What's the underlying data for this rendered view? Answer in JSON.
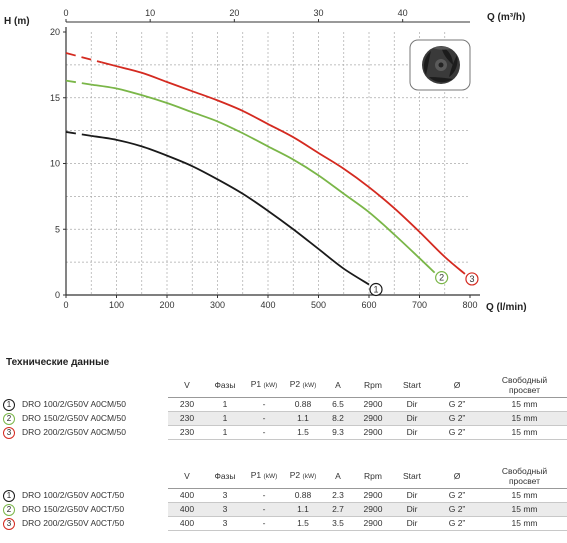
{
  "chart_data": {
    "type": "line",
    "ylabel": "H (m)",
    "xlabel_bottom": "Q (l/min)",
    "xlabel_top": "Q (m³/h)",
    "xlim": [
      0,
      800
    ],
    "ylim": [
      0,
      20
    ],
    "x_ticks": [
      0,
      100,
      200,
      300,
      400,
      500,
      600,
      700,
      800
    ],
    "y_ticks": [
      0,
      5,
      10,
      15,
      20
    ],
    "top_ticks": [
      0,
      10,
      20,
      30,
      40
    ],
    "grid": true,
    "series": [
      {
        "name": "1",
        "color": "#1a1a1a",
        "dashed_x": [
          0,
          50
        ],
        "x": [
          50,
          100,
          150,
          200,
          250,
          300,
          350,
          400,
          450,
          500,
          550,
          600
        ],
        "y": [
          12.1,
          11.8,
          11.3,
          10.6,
          9.8,
          8.8,
          7.7,
          6.4,
          5.0,
          3.5,
          2.0,
          0.8
        ]
      },
      {
        "name": "2",
        "color": "#7ab648",
        "dashed_x": [
          0,
          50
        ],
        "x": [
          50,
          100,
          150,
          200,
          250,
          300,
          350,
          400,
          450,
          500,
          550,
          600,
          650,
          700,
          730
        ],
        "y": [
          16.0,
          15.7,
          15.2,
          14.6,
          13.9,
          13.2,
          12.3,
          11.3,
          10.3,
          9.1,
          7.7,
          6.3,
          4.6,
          2.8,
          1.7
        ]
      },
      {
        "name": "3",
        "color": "#d42a20",
        "dashed_x": [
          0,
          70
        ],
        "x": [
          70,
          100,
          150,
          200,
          250,
          300,
          350,
          400,
          450,
          500,
          550,
          600,
          650,
          700,
          750,
          790
        ],
        "y": [
          17.7,
          17.4,
          16.9,
          16.2,
          15.5,
          14.8,
          14.0,
          13.0,
          12.0,
          10.8,
          9.6,
          8.2,
          6.6,
          4.8,
          2.9,
          1.6
        ]
      }
    ]
  },
  "specs": {
    "title": "Технические данные",
    "headers": {
      "v": "V",
      "phases": "Фазы",
      "p1": "P1",
      "p1_unit": "(kW)",
      "p2": "P2",
      "p2_unit": "(kW)",
      "a": "A",
      "rpm": "Rpm",
      "start": "Start",
      "diam": "Ø",
      "clear_line1": "Свободный",
      "clear_line2": "просвет"
    },
    "group1": [
      {
        "num": "1",
        "model": "DRO 100/2/G50V A0CM/50",
        "v": "230",
        "phases": "1",
        "p1": "-",
        "p2": "0.88",
        "a": "6.5",
        "rpm": "2900",
        "start": "Dir",
        "diam": "G 2”",
        "clear": "15 mm"
      },
      {
        "num": "2",
        "model": "DRO 150/2/G50V A0CM/50",
        "v": "230",
        "phases": "1",
        "p1": "-",
        "p2": "1.1",
        "a": "8.2",
        "rpm": "2900",
        "start": "Dir",
        "diam": "G 2”",
        "clear": "15 mm"
      },
      {
        "num": "3",
        "model": "DRO 200/2/G50V A0CM/50",
        "v": "230",
        "phases": "1",
        "p1": "-",
        "p2": "1.5",
        "a": "9.3",
        "rpm": "2900",
        "start": "Dir",
        "diam": "G 2”",
        "clear": "15 mm"
      }
    ],
    "group2": [
      {
        "num": "1",
        "model": "DRO 100/2/G50V A0CT/50",
        "v": "400",
        "phases": "3",
        "p1": "-",
        "p2": "0.88",
        "a": "2.3",
        "rpm": "2900",
        "start": "Dir",
        "diam": "G 2”",
        "clear": "15 mm"
      },
      {
        "num": "2",
        "model": "DRO 150/2/G50V A0CT/50",
        "v": "400",
        "phases": "3",
        "p1": "-",
        "p2": "1.1",
        "a": "2.7",
        "rpm": "2900",
        "start": "Dir",
        "diam": "G 2”",
        "clear": "15 mm"
      },
      {
        "num": "3",
        "model": "DRO 200/2/G50V A0CT/50",
        "v": "400",
        "phases": "3",
        "p1": "-",
        "p2": "1.5",
        "a": "3.5",
        "rpm": "2900",
        "start": "Dir",
        "diam": "G 2”",
        "clear": "15 mm"
      }
    ]
  },
  "colors": {
    "curve1": "#1a1a1a",
    "curve2": "#7ab648",
    "curve3": "#d42a20",
    "row_alt": "#ebebeb"
  },
  "icons": {
    "impeller": "impeller-icon"
  }
}
